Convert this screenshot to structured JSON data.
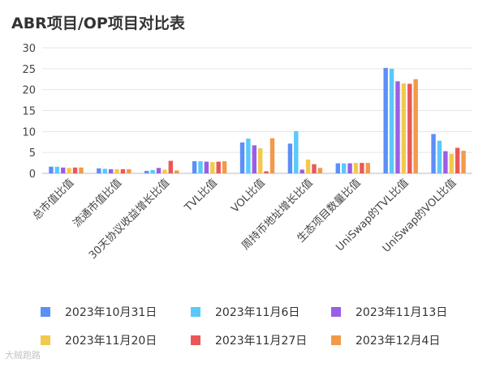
{
  "chart_data": {
    "type": "bar",
    "title": "ABR项目/OP项目对比表",
    "xlabel": "",
    "ylabel": "",
    "ylim": [
      0,
      30
    ],
    "yticks": [
      0,
      5,
      10,
      15,
      20,
      25,
      30
    ],
    "grid": true,
    "legend_position": "bottom",
    "categories": [
      "总市值比值",
      "流通市值比值",
      "30天协议收益增长比值",
      "TVL比值",
      "VOL比值",
      "周持币地址增长比值",
      "生态项目数量比值",
      "UniSwap的TVL比值",
      "UniSwap的VOL比值"
    ],
    "series": [
      {
        "name": "2023年10月31日",
        "color": "#5b8ff9",
        "values": [
          1.6,
          1.2,
          0.6,
          2.9,
          7.4,
          7.1,
          2.4,
          25.2,
          9.4
        ]
      },
      {
        "name": "2023年11月6日",
        "color": "#5ac8fa",
        "values": [
          1.6,
          1.1,
          0.8,
          2.9,
          8.3,
          10.1,
          2.4,
          25.0,
          7.8
        ]
      },
      {
        "name": "2023年11月13日",
        "color": "#9b5de5",
        "values": [
          1.4,
          1.0,
          1.3,
          2.8,
          6.7,
          0.9,
          2.4,
          22.0,
          5.3
        ]
      },
      {
        "name": "2023年11月20日",
        "color": "#f2c94c",
        "values": [
          1.3,
          1.0,
          0.9,
          2.7,
          6.0,
          3.3,
          2.5,
          21.5,
          4.7
        ]
      },
      {
        "name": "2023年11月27日",
        "color": "#eb5757",
        "values": [
          1.4,
          1.0,
          3.0,
          2.8,
          0.5,
          2.2,
          2.5,
          21.4,
          6.1
        ]
      },
      {
        "name": "2023年12月4日",
        "color": "#f2994a",
        "values": [
          1.4,
          1.0,
          0.7,
          2.9,
          8.4,
          1.3,
          2.5,
          22.5,
          5.4
        ]
      }
    ]
  },
  "watermark": "大贼跑路"
}
